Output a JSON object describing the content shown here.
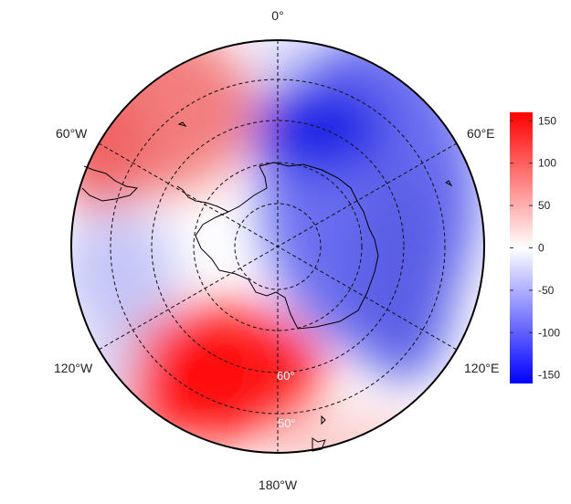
{
  "map": {
    "longitude_labels": {
      "lon_0": "0°",
      "lon_60e": "60°E",
      "lon_120e": "120°E",
      "lon_180": "180°W",
      "lon_120w": "120°W",
      "lon_60w": "60°W"
    },
    "latitude_labels": {
      "lat_60": "60°",
      "lat_50": "50°"
    },
    "colorbar": {
      "range": [
        -160,
        160
      ],
      "ticks": [
        "150",
        "100",
        "50",
        "0",
        "-50",
        "-100",
        "-150"
      ],
      "colors": {
        "low": "#0000ff",
        "mid": "#ffffff",
        "high": "#ff0000"
      }
    }
  }
}
